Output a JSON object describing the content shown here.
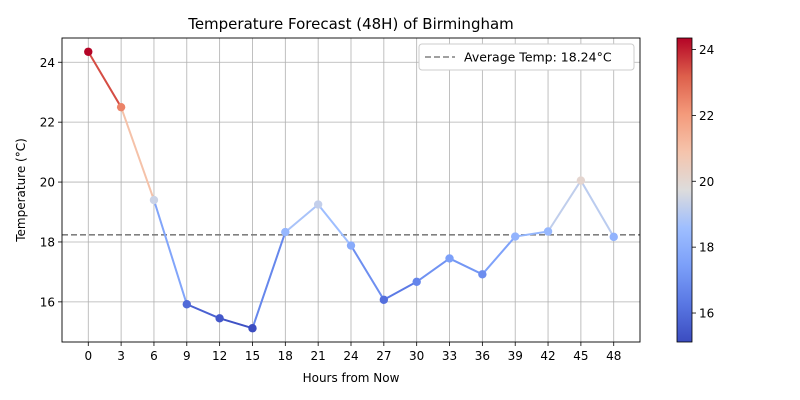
{
  "chart_data": {
    "type": "line",
    "title": "Temperature Forecast (48H) of Birmingham",
    "xlabel": "Hours from Now",
    "ylabel": "Temperature (°C)",
    "x": [
      0,
      3,
      6,
      9,
      12,
      15,
      18,
      21,
      24,
      27,
      30,
      33,
      36,
      39,
      42,
      45,
      48
    ],
    "values": [
      24.35,
      22.5,
      19.4,
      15.92,
      15.45,
      15.12,
      18.33,
      19.25,
      17.88,
      16.07,
      16.67,
      17.45,
      16.92,
      18.18,
      18.35,
      20.05,
      18.17
    ],
    "xticks": [
      "0",
      "3",
      "6",
      "9",
      "12",
      "15",
      "18",
      "21",
      "24",
      "27",
      "30",
      "33",
      "36",
      "39",
      "42",
      "45",
      "48"
    ],
    "yticks": [
      "16",
      "18",
      "20",
      "22",
      "24"
    ],
    "xlim": [
      -2.4,
      50.4
    ],
    "ylim": [
      14.66,
      24.81
    ],
    "grid": true,
    "average_line": {
      "value": 18.24,
      "label": "Average Temp: 18.24°C",
      "color": "#808080"
    },
    "legend_position": "top-right",
    "colorbar": {
      "colormap": "coolwarm",
      "range": [
        15.12,
        24.35
      ],
      "ticks": [
        "16",
        "18",
        "20",
        "22",
        "24"
      ]
    }
  }
}
